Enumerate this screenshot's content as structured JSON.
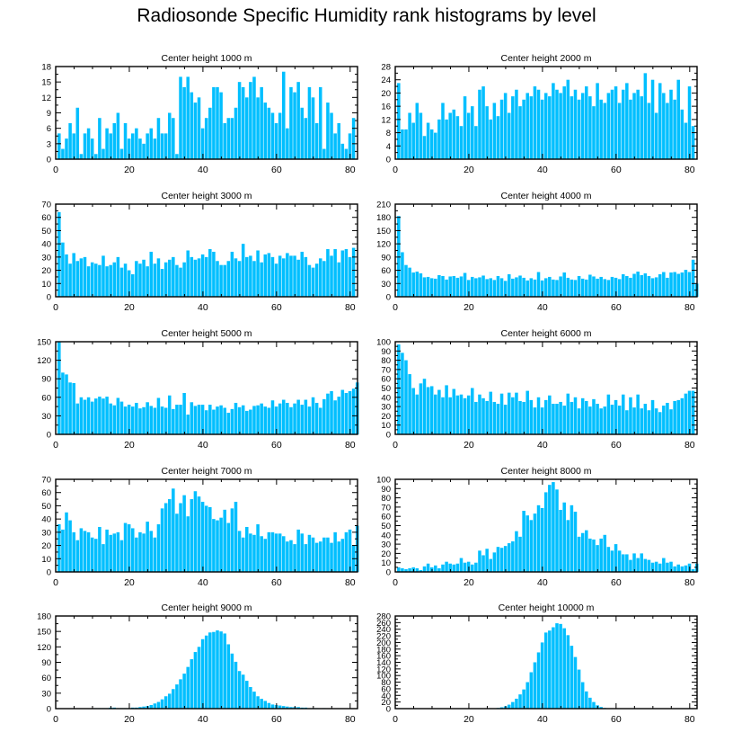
{
  "title": "Radiosonde Specific Humidity rank histograms by level",
  "colors": {
    "bar": "#00bfff",
    "bar_edge": "#3fcfff",
    "axis": "#000000",
    "background": "#ffffff"
  },
  "chart_data": [
    {
      "type": "bar",
      "title": "Center height 1000 m",
      "xlabel": "",
      "ylabel": "",
      "xlim": [
        0,
        82
      ],
      "ylim": [
        0,
        18
      ],
      "xticks": [
        0,
        20,
        40,
        60,
        80
      ],
      "yticks": [
        0,
        3,
        6,
        9,
        12,
        15,
        18
      ],
      "values": [
        5,
        2,
        4,
        7,
        5,
        10,
        1,
        5,
        6,
        4,
        1,
        8,
        2,
        6,
        5,
        7,
        9,
        2,
        7,
        4,
        5,
        6,
        4,
        3,
        5,
        6,
        4,
        8,
        5,
        5,
        9,
        8,
        1,
        16,
        14,
        16,
        13,
        11,
        12,
        6,
        8,
        10,
        14,
        14,
        13,
        7,
        8,
        8,
        10,
        15,
        14,
        12,
        15,
        16,
        12,
        14,
        11,
        10,
        9,
        7,
        9,
        17,
        6,
        14,
        13,
        15,
        10,
        8,
        14,
        12,
        7,
        14,
        2,
        11,
        9,
        5,
        7,
        3,
        2,
        5,
        8
      ]
    },
    {
      "type": "bar",
      "title": "Center height 2000 m",
      "xlabel": "",
      "ylabel": "",
      "xlim": [
        0,
        82
      ],
      "ylim": [
        0,
        28
      ],
      "xticks": [
        0,
        20,
        40,
        60,
        80
      ],
      "yticks": [
        0,
        4,
        8,
        12,
        16,
        20,
        24,
        28
      ],
      "values": [
        23,
        9,
        9,
        14,
        11,
        17,
        14,
        7,
        11,
        9,
        8,
        12,
        17,
        12,
        14,
        15,
        13,
        10,
        19,
        14,
        16,
        10,
        21,
        22,
        16,
        12,
        17,
        13,
        18,
        20,
        14,
        19,
        21,
        16,
        18,
        20,
        19,
        22,
        21,
        18,
        20,
        19,
        23,
        21,
        20,
        22,
        24,
        19,
        21,
        18,
        20,
        22,
        19,
        16,
        23,
        18,
        17,
        20,
        21,
        22,
        17,
        21,
        23,
        18,
        20,
        21,
        19,
        26,
        17,
        24,
        14,
        23,
        20,
        17,
        21,
        18,
        24,
        15,
        11,
        22,
        10
      ]
    },
    {
      "type": "bar",
      "title": "Center height 3000 m",
      "xlabel": "",
      "ylabel": "",
      "xlim": [
        0,
        82
      ],
      "ylim": [
        0,
        70
      ],
      "xticks": [
        0,
        20,
        40,
        60,
        80
      ],
      "yticks": [
        0,
        10,
        20,
        30,
        40,
        50,
        60,
        70
      ],
      "values": [
        64,
        41,
        32,
        25,
        33,
        27,
        29,
        30,
        23,
        26,
        25,
        24,
        31,
        23,
        24,
        26,
        30,
        22,
        25,
        20,
        17,
        27,
        25,
        28,
        23,
        34,
        25,
        29,
        21,
        26,
        28,
        30,
        24,
        22,
        26,
        35,
        30,
        28,
        29,
        32,
        30,
        36,
        34,
        27,
        24,
        24,
        27,
        34,
        29,
        27,
        40,
        30,
        31,
        27,
        35,
        26,
        32,
        33,
        30,
        25,
        31,
        29,
        33,
        31,
        31,
        28,
        34,
        30,
        24,
        22,
        25,
        29,
        27,
        36,
        31,
        36,
        26,
        35,
        36,
        30,
        37
      ]
    },
    {
      "type": "bar",
      "title": "Center height 4000 m",
      "xlabel": "",
      "ylabel": "",
      "xlim": [
        0,
        82
      ],
      "ylim": [
        0,
        210
      ],
      "xticks": [
        0,
        20,
        40,
        60,
        80
      ],
      "yticks": [
        0,
        30,
        60,
        90,
        120,
        150,
        180,
        210
      ],
      "values": [
        183,
        101,
        72,
        66,
        55,
        57,
        53,
        44,
        45,
        42,
        41,
        49,
        47,
        39,
        46,
        47,
        43,
        46,
        54,
        38,
        45,
        42,
        44,
        48,
        40,
        42,
        38,
        47,
        42,
        36,
        51,
        41,
        44,
        48,
        43,
        37,
        42,
        39,
        56,
        37,
        42,
        45,
        39,
        38,
        46,
        55,
        43,
        39,
        38,
        47,
        41,
        39,
        50,
        46,
        41,
        45,
        40,
        38,
        45,
        43,
        40,
        51,
        47,
        43,
        52,
        57,
        49,
        53,
        47,
        42,
        44,
        51,
        56,
        43,
        55,
        56,
        52,
        55,
        61,
        56,
        84,
        30
      ]
    },
    {
      "type": "bar",
      "title": "Center height 5000 m",
      "xlabel": "",
      "ylabel": "",
      "xlim": [
        0,
        82
      ],
      "ylim": [
        0,
        150
      ],
      "xticks": [
        0,
        20,
        40,
        60,
        80
      ],
      "yticks": [
        0,
        30,
        60,
        90,
        120,
        150
      ],
      "values": [
        150,
        100,
        97,
        84,
        83,
        50,
        60,
        56,
        60,
        53,
        58,
        61,
        58,
        61,
        50,
        47,
        59,
        53,
        45,
        48,
        45,
        51,
        42,
        44,
        52,
        46,
        43,
        59,
        45,
        43,
        63,
        41,
        48,
        48,
        67,
        32,
        52,
        46,
        48,
        48,
        39,
        48,
        40,
        45,
        47,
        43,
        35,
        41,
        51,
        44,
        47,
        38,
        40,
        46,
        47,
        50,
        45,
        43,
        55,
        45,
        50,
        56,
        51,
        44,
        50,
        56,
        48,
        56,
        45,
        60,
        51,
        43,
        57,
        66,
        70,
        55,
        61,
        72,
        67,
        70,
        74,
        84
      ]
    },
    {
      "type": "bar",
      "title": "Center height 6000 m",
      "xlabel": "",
      "ylabel": "",
      "xlim": [
        0,
        82
      ],
      "ylim": [
        0,
        100
      ],
      "xticks": [
        0,
        20,
        40,
        60,
        80
      ],
      "yticks": [
        0,
        10,
        20,
        30,
        40,
        50,
        60,
        70,
        80,
        90,
        100
      ],
      "values": [
        97,
        88,
        80,
        65,
        50,
        43,
        55,
        60,
        51,
        52,
        43,
        48,
        40,
        53,
        40,
        49,
        42,
        43,
        39,
        42,
        50,
        35,
        43,
        39,
        36,
        46,
        35,
        33,
        44,
        32,
        45,
        40,
        45,
        36,
        35,
        47,
        37,
        29,
        40,
        29,
        37,
        42,
        33,
        33,
        35,
        31,
        44,
        35,
        40,
        28,
        39,
        36,
        30,
        38,
        33,
        28,
        30,
        43,
        32,
        37,
        31,
        43,
        26,
        40,
        29,
        43,
        28,
        33,
        26,
        37,
        28,
        24,
        31,
        34,
        27,
        36,
        37,
        39,
        44,
        47,
        47
      ]
    },
    {
      "type": "bar",
      "title": "Center height 7000 m",
      "xlabel": "",
      "ylabel": "",
      "xlim": [
        0,
        82
      ],
      "ylim": [
        0,
        70
      ],
      "xticks": [
        0,
        20,
        40,
        60,
        80
      ],
      "yticks": [
        0,
        10,
        20,
        30,
        40,
        50,
        60,
        70
      ],
      "values": [
        36,
        32,
        45,
        39,
        30,
        24,
        33,
        31,
        30,
        26,
        25,
        34,
        21,
        32,
        28,
        29,
        30,
        24,
        37,
        36,
        33,
        26,
        30,
        29,
        38,
        31,
        26,
        36,
        48,
        52,
        55,
        63,
        44,
        52,
        58,
        42,
        55,
        61,
        57,
        53,
        50,
        49,
        40,
        39,
        41,
        47,
        37,
        48,
        53,
        31,
        26,
        34,
        29,
        28,
        36,
        27,
        25,
        30,
        30,
        29,
        29,
        27,
        23,
        24,
        21,
        32,
        29,
        21,
        28,
        26,
        22,
        23,
        26,
        26,
        22,
        30,
        23,
        25,
        30,
        32,
        20,
        35
      ]
    },
    {
      "type": "bar",
      "title": "Center height 8000 m",
      "xlabel": "",
      "ylabel": "",
      "xlim": [
        0,
        82
      ],
      "ylim": [
        0,
        100
      ],
      "xticks": [
        0,
        20,
        40,
        60,
        80
      ],
      "yticks": [
        0,
        10,
        20,
        30,
        40,
        50,
        60,
        70,
        80,
        90,
        100
      ],
      "values": [
        5,
        4,
        3,
        4,
        5,
        4,
        2,
        6,
        9,
        5,
        7,
        4,
        8,
        11,
        9,
        8,
        9,
        15,
        10,
        11,
        8,
        10,
        23,
        18,
        25,
        14,
        21,
        27,
        26,
        28,
        31,
        33,
        44,
        38,
        66,
        61,
        56,
        63,
        72,
        69,
        86,
        94,
        97,
        89,
        67,
        75,
        56,
        72,
        65,
        38,
        42,
        45,
        36,
        35,
        29,
        36,
        40,
        27,
        23,
        30,
        23,
        19,
        19,
        13,
        20,
        15,
        20,
        14,
        13,
        10,
        11,
        9,
        15,
        10,
        11,
        6,
        8,
        6,
        7,
        9,
        3,
        9
      ]
    },
    {
      "type": "bar",
      "title": "Center height 9000 m",
      "xlabel": "",
      "ylabel": "",
      "xlim": [
        0,
        82
      ],
      "ylim": [
        0,
        180
      ],
      "xticks": [
        0,
        20,
        40,
        60,
        80
      ],
      "yticks": [
        0,
        30,
        60,
        90,
        120,
        150,
        180
      ],
      "values": [
        0,
        0,
        0,
        0,
        0,
        0,
        0,
        0,
        0,
        0,
        1,
        1,
        1,
        1,
        2,
        2,
        1,
        1,
        1,
        1,
        2,
        2,
        3,
        4,
        5,
        7,
        10,
        13,
        18,
        24,
        29,
        38,
        47,
        57,
        68,
        81,
        96,
        110,
        120,
        135,
        142,
        148,
        149,
        152,
        150,
        146,
        125,
        107,
        91,
        73,
        66,
        54,
        42,
        33,
        24,
        19,
        15,
        11,
        8,
        7,
        6,
        5,
        4,
        3,
        3,
        3,
        2,
        2,
        1,
        1,
        1,
        0,
        1,
        0,
        0,
        0,
        0,
        0,
        0,
        0,
        0
      ]
    },
    {
      "type": "bar",
      "title": "Center height 10000 m",
      "xlabel": "",
      "ylabel": "",
      "xlim": [
        0,
        82
      ],
      "ylim": [
        0,
        280
      ],
      "xticks": [
        0,
        20,
        40,
        60,
        80
      ],
      "yticks": [
        0,
        20,
        40,
        60,
        80,
        100,
        120,
        140,
        160,
        180,
        200,
        220,
        240,
        260,
        280
      ],
      "values": [
        0,
        0,
        0,
        0,
        0,
        0,
        0,
        0,
        0,
        0,
        0,
        0,
        0,
        0,
        0,
        0,
        0,
        0,
        0,
        0,
        0,
        0,
        0,
        0,
        0,
        1,
        1,
        2,
        4,
        7,
        12,
        20,
        30,
        43,
        58,
        80,
        110,
        140,
        170,
        200,
        230,
        236,
        246,
        258,
        256,
        243,
        222,
        190,
        156,
        118,
        80,
        52,
        33,
        20,
        10,
        5,
        2,
        1,
        1,
        0,
        0,
        0,
        0,
        0,
        0,
        0,
        0,
        0,
        0,
        0,
        0,
        0,
        0,
        0,
        0,
        0,
        0,
        0,
        0,
        0,
        0
      ]
    }
  ]
}
